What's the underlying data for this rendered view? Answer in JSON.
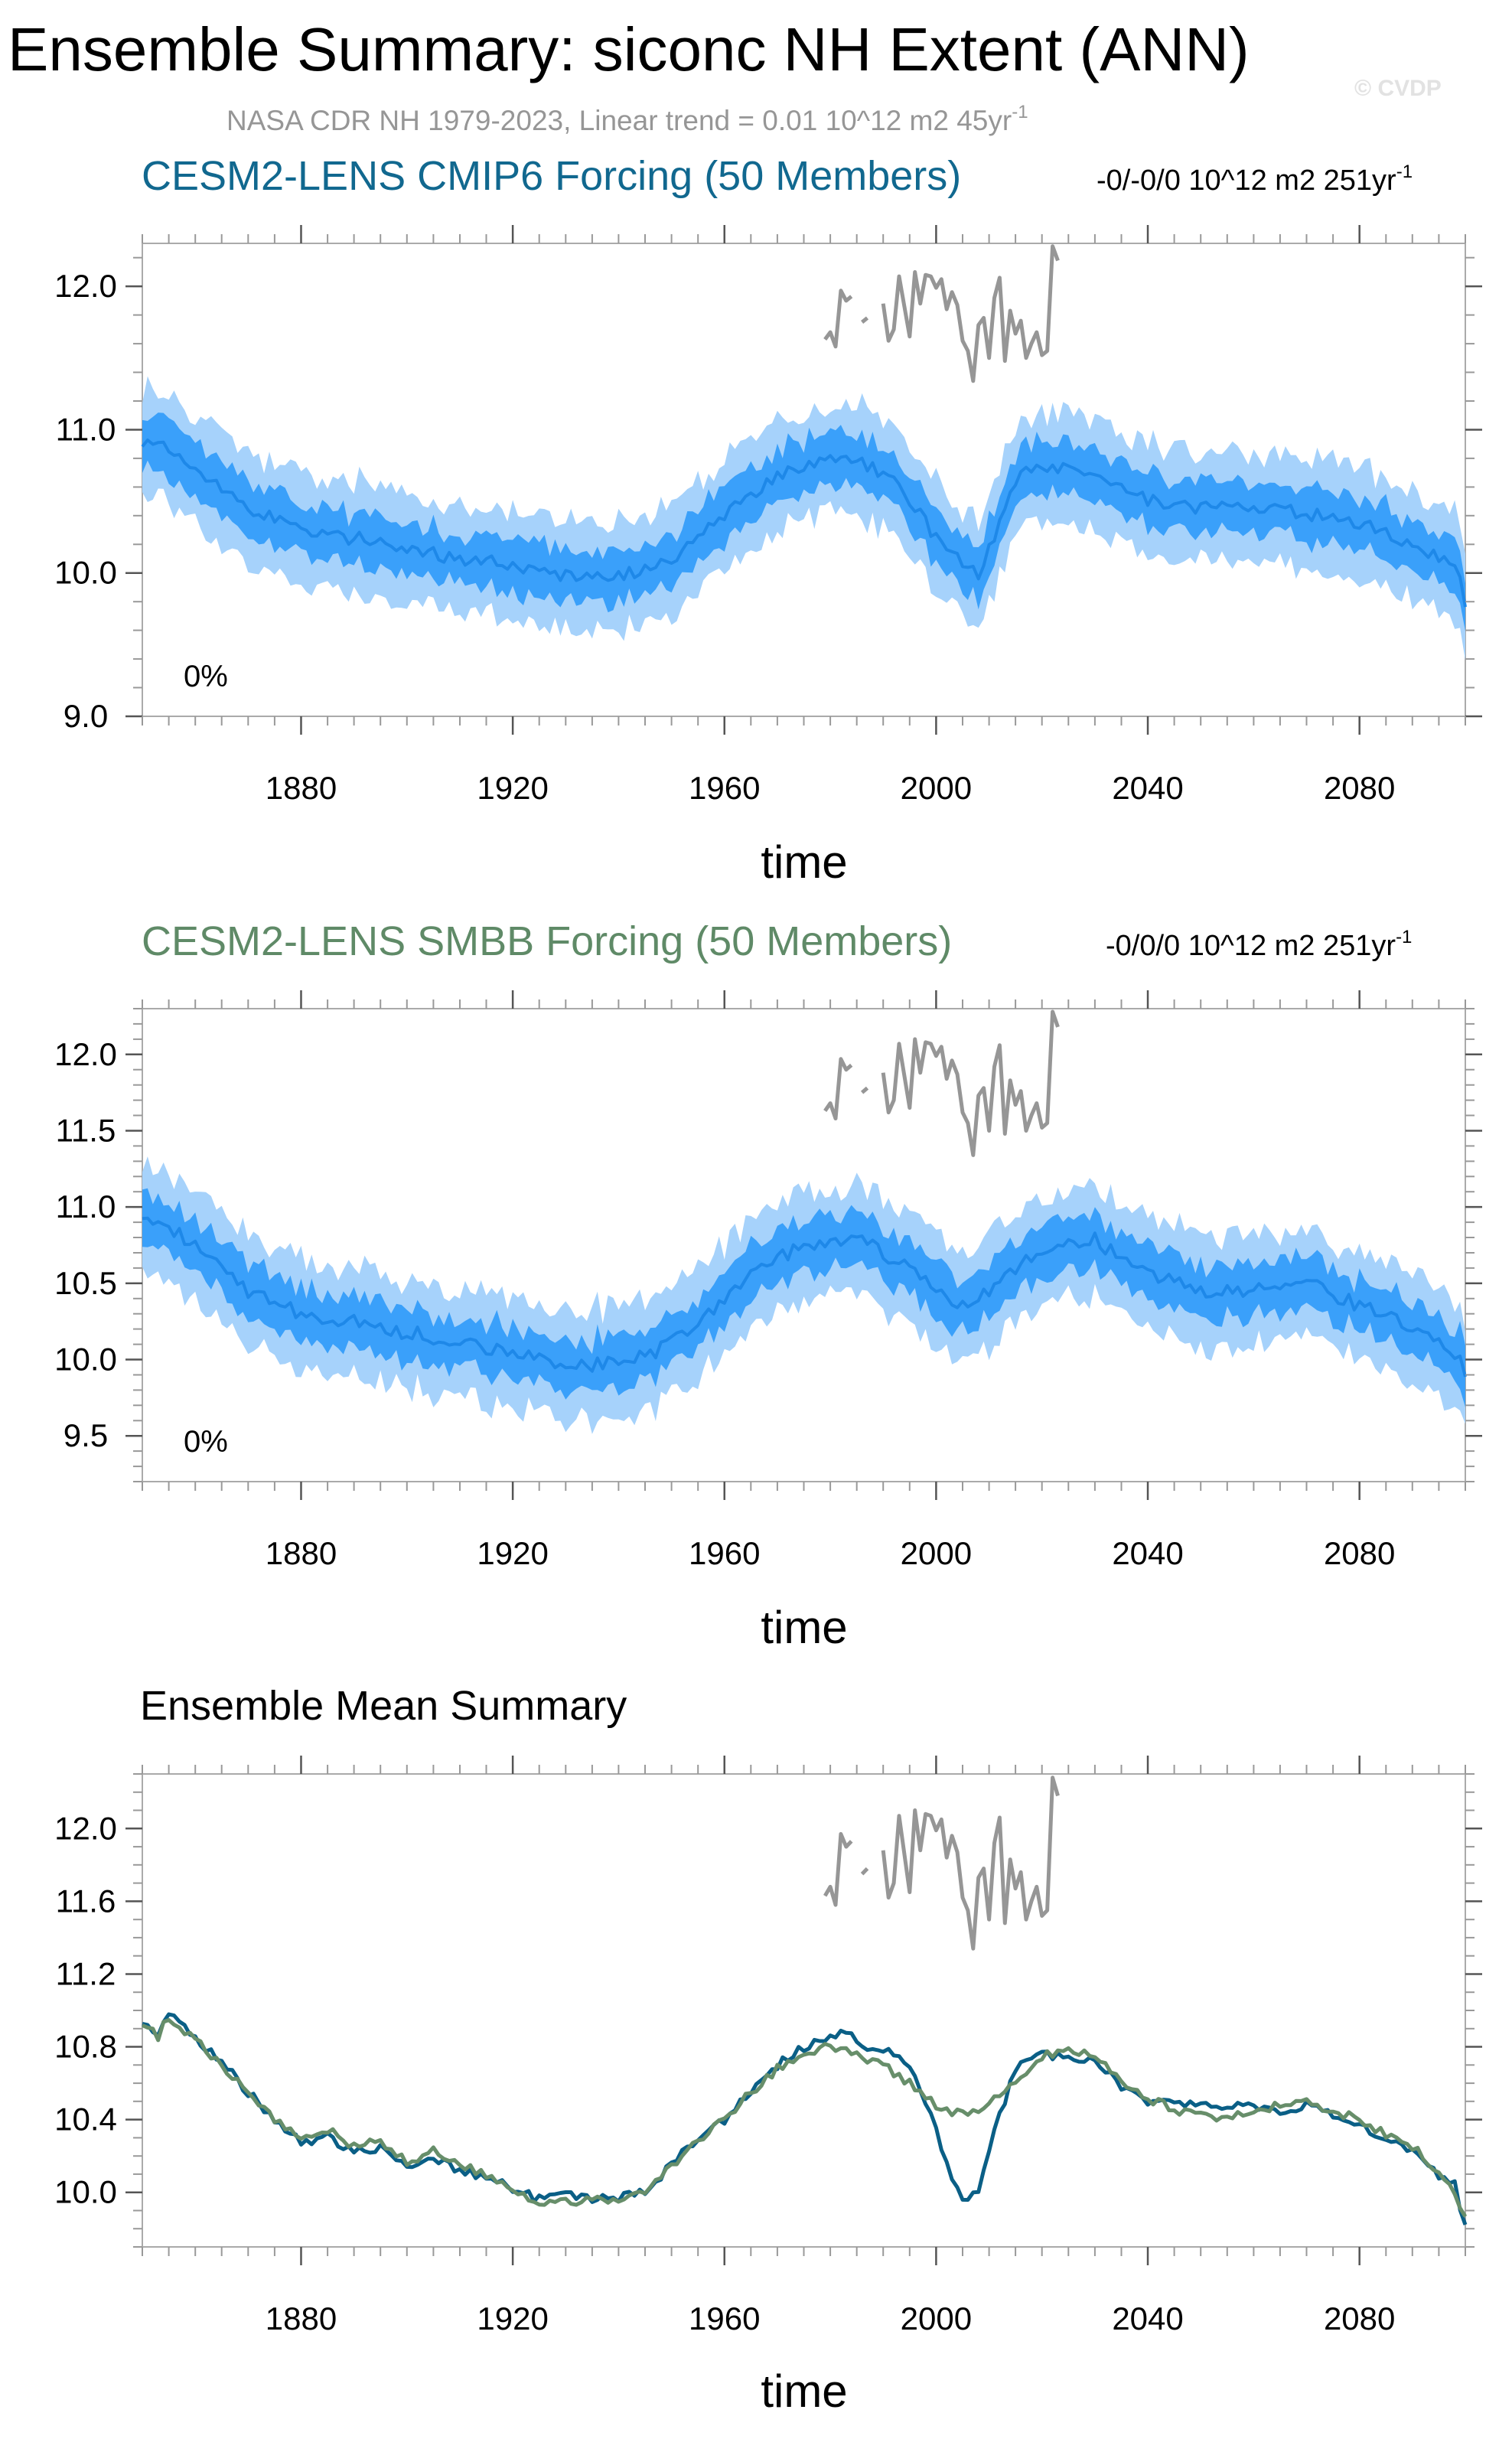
{
  "page": {
    "title": "Ensemble Summary: siconc NH Extent (ANN)",
    "subtitle_prefix": "NASA CDR NH 1979-2023, Linear trend = 0.01 10^12 m2 45yr",
    "subtitle_sup": "-1",
    "watermark": "© CVDP"
  },
  "colors": {
    "cmip6_title": "#11688f",
    "smbb_title": "#5f8a67",
    "obs": "#969696",
    "band_outer": "#a6d2fb",
    "band_inner": "#3aa0fa",
    "mean_line": "#1e88e8",
    "cmip6_line": "#0a5f86",
    "smbb_line": "#678e6a"
  },
  "chart_data": [
    {
      "id": "cmip6",
      "type": "area",
      "title": "CESM2-LENS CMIP6 Forcing (50 Members)",
      "trend_text": "-0/-0/0 10^12 m2 251yr",
      "trend_sup": "-1",
      "percent_label": "0%",
      "xlabel": "time",
      "ylabel": "",
      "xlim": [
        1850,
        2100
      ],
      "ylim": [
        9.0,
        12.3
      ],
      "x_ticks": [
        1880,
        1920,
        1960,
        2000,
        2040,
        2080
      ],
      "y_ticks": [
        9.0,
        10.0,
        11.0,
        12.0
      ],
      "y_tick_labels": [
        "9.0",
        "10.0",
        "11.0",
        "12.0"
      ],
      "y_minor_step": 0.2,
      "x_minor_step": 5,
      "series_keypoints": {
        "x": [
          1850,
          1855,
          1860,
          1870,
          1875,
          1880,
          1885,
          1890,
          1900,
          1910,
          1920,
          1930,
          1940,
          1945,
          1950,
          1960,
          1970,
          1975,
          1980,
          1985,
          1990,
          1995,
          2000,
          2005,
          2008,
          2010,
          2015,
          2020,
          2025,
          2030,
          2040,
          2050,
          2060,
          2070,
          2080,
          2090,
          2095,
          2099,
          2100
        ],
        "mean": [
          10.93,
          10.85,
          10.75,
          10.45,
          10.38,
          10.3,
          10.25,
          10.25,
          10.18,
          10.1,
          10.05,
          9.98,
          9.98,
          10.02,
          10.1,
          10.4,
          10.7,
          10.72,
          10.78,
          10.8,
          10.7,
          10.5,
          10.25,
          10.05,
          10.0,
          10.15,
          10.65,
          10.75,
          10.72,
          10.65,
          10.5,
          10.45,
          10.45,
          10.42,
          10.35,
          10.2,
          10.1,
          10.0,
          9.78
        ],
        "inner_half_width": 0.18,
        "outer_half_width": 0.38
      },
      "observations": {
        "label": "NASA CDR NH 1979-2023",
        "years": [
          1979,
          1980,
          1981,
          1982,
          1983,
          1984,
          1985,
          1986,
          1987,
          1988,
          1989,
          1990,
          1991,
          1992,
          1993,
          1994,
          1995,
          1996,
          1997,
          1998,
          1999,
          2000,
          2001,
          2002,
          2003,
          2004,
          2005,
          2006,
          2007,
          2008,
          2009,
          2010,
          2011,
          2012,
          2013,
          2014,
          2015,
          2016,
          2017,
          2018,
          2019,
          2020,
          2021,
          2022,
          2023
        ],
        "values": [
          11.63,
          11.68,
          11.58,
          11.97,
          11.9,
          11.93,
          null,
          11.75,
          11.78,
          null,
          null,
          11.88,
          11.62,
          11.7,
          12.07,
          11.86,
          11.65,
          12.1,
          11.88,
          12.08,
          12.07,
          11.99,
          12.05,
          11.84,
          11.96,
          11.87,
          11.62,
          11.55,
          11.34,
          11.73,
          11.78,
          11.5,
          11.92,
          12.06,
          11.48,
          11.83,
          11.67,
          11.76,
          11.5,
          11.6,
          11.68,
          11.52,
          11.55,
          12.28,
          12.18
        ]
      }
    },
    {
      "id": "smbb",
      "type": "area",
      "title": "CESM2-LENS SMBB Forcing (50 Members)",
      "trend_text": "-0/0/0 10^12 m2 251yr",
      "trend_sup": "-1",
      "percent_label": "0%",
      "xlabel": "time",
      "ylabel": "",
      "xlim": [
        1850,
        2100
      ],
      "ylim": [
        9.2,
        12.3
      ],
      "x_ticks": [
        1880,
        1920,
        1960,
        2000,
        2040,
        2080
      ],
      "y_ticks": [
        9.5,
        10.0,
        10.5,
        11.0,
        11.5,
        12.0
      ],
      "y_tick_labels": [
        "9.5",
        "10.0",
        "10.5",
        "11.0",
        "11.5",
        "12.0"
      ],
      "y_minor_step": 0.1,
      "x_minor_step": 5,
      "series_keypoints": {
        "x": [
          1850,
          1855,
          1860,
          1870,
          1875,
          1880,
          1885,
          1890,
          1900,
          1910,
          1920,
          1930,
          1940,
          1945,
          1950,
          1960,
          1970,
          1975,
          1980,
          1985,
          1990,
          1995,
          2000,
          2005,
          2010,
          2015,
          2020,
          2025,
          2030,
          2040,
          2050,
          2060,
          2070,
          2080,
          2090,
          2095,
          2099,
          2100
        ],
        "mean": [
          10.92,
          10.85,
          10.75,
          10.45,
          10.38,
          10.3,
          10.27,
          10.25,
          10.18,
          10.12,
          10.05,
          9.96,
          9.98,
          10.03,
          10.1,
          10.4,
          10.68,
          10.72,
          10.75,
          10.8,
          10.7,
          10.58,
          10.45,
          10.35,
          10.45,
          10.6,
          10.72,
          10.75,
          10.78,
          10.55,
          10.45,
          10.45,
          10.5,
          10.35,
          10.2,
          10.1,
          10.0,
          9.84
        ],
        "inner_half_width": 0.17,
        "outer_half_width": 0.36
      },
      "observations": {
        "label": "NASA CDR NH 1979-2023",
        "years": [
          1979,
          1980,
          1981,
          1982,
          1983,
          1984,
          1985,
          1986,
          1987,
          1988,
          1989,
          1990,
          1991,
          1992,
          1993,
          1994,
          1995,
          1996,
          1997,
          1998,
          1999,
          2000,
          2001,
          2002,
          2003,
          2004,
          2005,
          2006,
          2007,
          2008,
          2009,
          2010,
          2011,
          2012,
          2013,
          2014,
          2015,
          2016,
          2017,
          2018,
          2019,
          2020,
          2021,
          2022,
          2023
        ],
        "values": [
          11.63,
          11.68,
          11.58,
          11.97,
          11.9,
          11.93,
          null,
          11.75,
          11.78,
          null,
          null,
          11.88,
          11.62,
          11.7,
          12.07,
          11.86,
          11.65,
          12.1,
          11.88,
          12.08,
          12.07,
          11.99,
          12.05,
          11.84,
          11.96,
          11.87,
          11.62,
          11.55,
          11.34,
          11.73,
          11.78,
          11.5,
          11.92,
          12.06,
          11.48,
          11.83,
          11.67,
          11.76,
          11.5,
          11.6,
          11.68,
          11.52,
          11.55,
          12.28,
          12.18
        ]
      }
    },
    {
      "id": "mean",
      "type": "line",
      "title": "Ensemble Mean Summary",
      "xlabel": "time",
      "ylabel": "",
      "xlim": [
        1850,
        2100
      ],
      "ylim": [
        9.7,
        12.3
      ],
      "x_ticks": [
        1880,
        1920,
        1960,
        2000,
        2040,
        2080
      ],
      "y_ticks": [
        10.0,
        10.4,
        10.8,
        11.2,
        11.6,
        12.0
      ],
      "y_tick_labels": [
        "10.0",
        "10.4",
        "10.8",
        "11.2",
        "11.6",
        "12.0"
      ],
      "y_minor_step": 0.1,
      "x_minor_step": 5,
      "series": [
        {
          "name": "CESM2-LENS CMIP6 Forcing",
          "x": [
            1850,
            1853,
            1855,
            1860,
            1865,
            1870,
            1875,
            1880,
            1885,
            1890,
            1895,
            1900,
            1905,
            1910,
            1915,
            1920,
            1925,
            1930,
            1935,
            1940,
            1945,
            1950,
            1955,
            1960,
            1965,
            1970,
            1975,
            1980,
            1983,
            1985,
            1990,
            1995,
            2000,
            2003,
            2005,
            2008,
            2010,
            2013,
            2015,
            2018,
            2020,
            2025,
            2030,
            2035,
            2040,
            2045,
            2050,
            2055,
            2060,
            2065,
            2070,
            2075,
            2080,
            2085,
            2090,
            2095,
            2098,
            2100
          ],
          "values": [
            10.93,
            10.88,
            10.98,
            10.85,
            10.72,
            10.55,
            10.4,
            10.28,
            10.3,
            10.22,
            10.25,
            10.15,
            10.2,
            10.12,
            10.08,
            10.02,
            9.96,
            9.98,
            9.96,
            9.97,
            10.0,
            10.15,
            10.3,
            10.4,
            10.55,
            10.7,
            10.8,
            10.85,
            10.9,
            10.82,
            10.78,
            10.7,
            10.35,
            10.05,
            9.98,
            9.98,
            10.25,
            10.5,
            10.68,
            10.75,
            10.75,
            10.75,
            10.72,
            10.58,
            10.5,
            10.5,
            10.48,
            10.46,
            10.48,
            10.45,
            10.48,
            10.42,
            10.37,
            10.3,
            10.22,
            10.1,
            10.05,
            9.8
          ]
        },
        {
          "name": "CESM2-LENS SMBB Forcing",
          "x": [
            1850,
            1853,
            1855,
            1860,
            1865,
            1870,
            1875,
            1880,
            1885,
            1890,
            1895,
            1900,
            1905,
            1910,
            1915,
            1920,
            1925,
            1930,
            1935,
            1940,
            1945,
            1950,
            1955,
            1960,
            1965,
            1970,
            1975,
            1980,
            1983,
            1985,
            1990,
            1995,
            2000,
            2003,
            2005,
            2008,
            2010,
            2013,
            2015,
            2018,
            2020,
            2025,
            2030,
            2035,
            2040,
            2045,
            2050,
            2055,
            2060,
            2065,
            2070,
            2075,
            2080,
            2085,
            2090,
            2095,
            2098,
            2100
          ],
          "values": [
            10.92,
            10.86,
            10.97,
            10.84,
            10.7,
            10.56,
            10.4,
            10.3,
            10.35,
            10.25,
            10.28,
            10.17,
            10.23,
            10.15,
            10.1,
            10.03,
            9.93,
            9.96,
            9.95,
            9.96,
            10.01,
            10.14,
            10.28,
            10.4,
            10.55,
            10.68,
            10.76,
            10.8,
            10.8,
            10.75,
            10.7,
            10.6,
            10.48,
            10.42,
            10.45,
            10.43,
            10.5,
            10.55,
            10.62,
            10.7,
            10.75,
            10.78,
            10.76,
            10.6,
            10.52,
            10.45,
            10.42,
            10.4,
            10.45,
            10.48,
            10.5,
            10.45,
            10.4,
            10.32,
            10.25,
            10.12,
            10.0,
            9.85
          ]
        }
      ],
      "observations": {
        "label": "NASA CDR NH 1979-2023",
        "years": [
          1979,
          1980,
          1981,
          1982,
          1983,
          1984,
          1985,
          1986,
          1987,
          1988,
          1989,
          1990,
          1991,
          1992,
          1993,
          1994,
          1995,
          1996,
          1997,
          1998,
          1999,
          2000,
          2001,
          2002,
          2003,
          2004,
          2005,
          2006,
          2007,
          2008,
          2009,
          2010,
          2011,
          2012,
          2013,
          2014,
          2015,
          2016,
          2017,
          2018,
          2019,
          2020,
          2021,
          2022,
          2023
        ],
        "values": [
          11.63,
          11.68,
          11.58,
          11.97,
          11.9,
          11.93,
          null,
          11.75,
          11.78,
          null,
          null,
          11.88,
          11.62,
          11.7,
          12.07,
          11.86,
          11.65,
          12.1,
          11.88,
          12.08,
          12.07,
          11.99,
          12.05,
          11.84,
          11.96,
          11.87,
          11.62,
          11.55,
          11.34,
          11.73,
          11.78,
          11.5,
          11.92,
          12.06,
          11.48,
          11.83,
          11.67,
          11.76,
          11.5,
          11.6,
          11.68,
          11.52,
          11.55,
          12.28,
          12.18
        ]
      }
    }
  ]
}
